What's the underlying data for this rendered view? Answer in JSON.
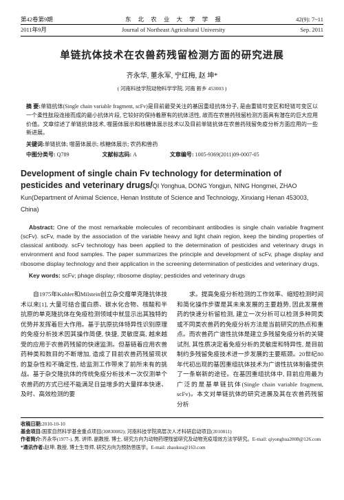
{
  "header": {
    "vol_issue_cn": "第42卷第9期",
    "journal_cn": "东 北 农 业 大 学 学 报",
    "pages": "42(9): 7~11",
    "date_cn": "2011年9月",
    "journal_en": "Journal of Northeast Agricultural University",
    "date_en": "Sep. 2011"
  },
  "title_cn": "单链抗体技术在农兽药残留检测方面的研究进展",
  "authors_cn": "齐永华, 董永军, 宁红梅, 赵 坤*",
  "affiliation_cn": "( 河南科技学院动物科学学院, 河南 新乡 453003 )",
  "abstract_cn_label": "摘 要:",
  "abstract_cn": "单链抗体(Single chain variable fragment, scFv)是目前最受关注的基因重组抗体分子, 是由重链可变区和轻链可变区以一个柔性肽段连接而成的最小抗体片段, 它较好的保持着原有的抗体活性, 故而在农兽药残留检测方面具有潜在的巨大应用价值。文章综述了单链抗体技术, 噬菌体展示和核糖体展示技术以及目前单链抗体在农兽药残留免疫分析方面应用的一些新进展。",
  "keywords_cn_label": "关键词:",
  "keywords_cn": "单链抗体; 噬菌体展示; 核糖体展示; 农药和兽药",
  "clc_label": "中图分类号:",
  "clc": "Q789",
  "docid_label": "文献标志码:",
  "docid": "A",
  "artno_label": "文章编号:",
  "artno": "1005-9369(2011)09-0007-05",
  "title_en": "Development of single chain Fv technology for determination of pesticides and veterinary drugs/",
  "authors_en": "QI Yonghua, DONG Yongjun, NING Hongmei, ZHAO Kun(Department of Animal Science, Henan Institute of Science and Technology, Xinxiang Henan 453003, China)",
  "abstract_en_label": "Abstract:",
  "abstract_en": " One of the most remarkable molecules of recombinant antibodies is single chain variable fragment (scFv). scFv, made by the association of the variable heavy and light chain region, keep the binding properties of classical antibody. scFv technology has been applied to the determination of pesticides and veterinary drugs in environment and food samples. The paper summarizes the principle and development of scFv, phage display and ribosome display technology and their application in the screening determination of pesticides and veterinary drugs.",
  "keywords_en_label": "Key words:",
  "keywords_en": " scFv; phage display; ribosome display; pesticides and veterinary drugs",
  "body_p1": "自1975年Kohler和Milstein创立杂交瘤单克隆抗体技术以来[1], 大量可结合蛋白质、碳水化合物、核酸和半抗原的单克隆抗体在免疫检测领域中就显示出其独特的优势并发挥着巨大作用。基于抗原抗体特异性识别原理的免疫分析技术因其操作简便, 快捷, 灵敏度高, 越来越受的应用于农兽药残留的快速监测。但基链着应用农兽药种类和数目的不断增加, 造成了目前农兽药残留现状的复杂性和不确定性, 给监测工作带来了前所未有的挑战。基于杂交隆抗体的传统免疫分析技术一次仅测单个农兽药的方式已经不能满足日益增多的大量样本快速、及时、高效检测的要",
  "body_p2": "求。提高免疫分析检测的工作效率、缩短检测时间和简化操作步骤是其未来发展的主要趋势, 因此发展兽药的快速分析留检测, 建立一次分析可以检测多种同类或不同类农兽药的免疫分析方法是当前研究的热点和重点。而农兽药广谱性抗体是建立多残留免疫分析的关键试剂, 其性质决定着免疫分析的灵敏度和特异性, 是目前制约多残留免疫技术进一步发展的主要瓶颈。20世纪80年代初出现的基因重组抗体技术为广谱性抗体制备提供了一条崭新的途径。在基因重组抗体中, 目前应用最为广泛的是基单链抗体(Single chain variable fragment, scFv)。本文对单链抗体的研究进展及其在农兽药残留分析",
  "footer": {
    "recv_label": "收稿日期:",
    "recv": "2010-10-10",
    "fund_label": "基金项目:",
    "fund": "国家自然科学基金重点项目(30830082); 河南科技学院高层次人才科研启动项目(2010011)",
    "author_label": "作者简介:",
    "author": "齐永华(1977-), 男, 讲师, 副教授, 博士, 研究方向为动物药理残留研究及动物克疫增效方法学研究。E-mail: qiyonghua2008@126.com",
    "corr_label": "*通讯作者:",
    "corr": "赵坤, 教授, 博士生导师, 研究方向为预防兽医学。E-mail: zhaokuu@163.com"
  }
}
